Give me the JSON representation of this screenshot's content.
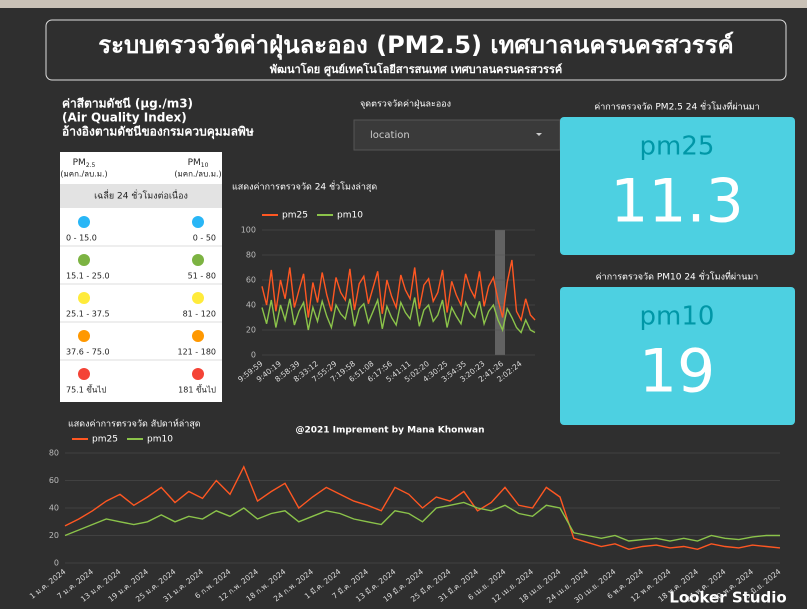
{
  "header": {
    "title": "ระบบตรวจวัดค่าฝุ่นละออง (PM2.5) เทศบาลนครนครสวรรค์",
    "subtitle": "พัฒนาโดย ศูนย์เทคโนโลยีสารสนเทศ เทศบาลนครนครสวรรค์"
  },
  "aqi_legend": {
    "heading": [
      "ค่าสีตามดัชนี  (μg./m3)",
      "(Air Quality Index)",
      "อ้างอิงตามดัชนีของกรมควบคุมมลพิษ"
    ],
    "columns": [
      {
        "name": "PM",
        "sub": "2.5",
        "unit": "(มคก./ลบ.ม.)"
      },
      {
        "name": "PM",
        "sub": "10",
        "unit": "(มคก./ลบ.ม.)"
      }
    ],
    "avg_label": "เฉลี่ย 24 ชั่วโมงต่อเนื่อง",
    "rows": [
      {
        "color": "#29b6f6",
        "pm25": "0 - 15.0",
        "pm10": "0 - 50"
      },
      {
        "color": "#7cb342",
        "pm25": "15.1 - 25.0",
        "pm10": "51 - 80"
      },
      {
        "color": "#ffeb3b",
        "pm25": "25.1 - 37.5",
        "pm10": "81 - 120"
      },
      {
        "color": "#ff9800",
        "pm25": "37.6 - 75.0",
        "pm10": "121 - 180"
      },
      {
        "color": "#f44336",
        "pm25": "75.1 ขึ้นไป",
        "pm10": "181 ขึ้นไป"
      }
    ]
  },
  "location": {
    "label": "จุดตรวจวัดค่าฝุ่นละออง",
    "placeholder": "location"
  },
  "cards": [
    {
      "caption": "ค่าการตรวจวัด PM2.5 24 ชั่วโมงที่ผ่านมา",
      "name": "pm25",
      "value": 11.3
    },
    {
      "caption": "ค่าการตรวจวัด PM10 24 ชั่วโมงที่ผ่านมา",
      "name": "pm10",
      "value": 19
    }
  ],
  "chart_data": [
    {
      "type": "line",
      "title": "แสดงค่าการตรวจวัด 24 ชั่วโมงล่าสุด",
      "categories": [
        "9:59:59",
        null,
        null,
        null,
        "9:40:19",
        null,
        null,
        null,
        "8:58:39",
        null,
        null,
        null,
        "8:33:12",
        null,
        null,
        null,
        "7:55:29",
        null,
        null,
        null,
        "7:19:58",
        null,
        null,
        null,
        "6:51:08",
        null,
        null,
        null,
        "6:17:56",
        null,
        null,
        null,
        "5:41:11",
        null,
        null,
        null,
        "5:02:20",
        null,
        null,
        null,
        "4:30:25",
        null,
        null,
        null,
        "3:54:35",
        null,
        null,
        null,
        "3:20:23",
        null,
        null,
        null,
        "2:41:26",
        null,
        null,
        null,
        "2:02:24",
        null,
        null,
        null
      ],
      "series": [
        {
          "name": "pm25",
          "color": "#ff5722",
          "values": [
            55,
            40,
            68,
            35,
            60,
            45,
            70,
            38,
            52,
            65,
            30,
            58,
            42,
            66,
            48,
            35,
            62,
            50,
            44,
            69,
            36,
            57,
            63,
            41,
            54,
            67,
            33,
            60,
            47,
            38,
            64,
            52,
            45,
            70,
            37,
            56,
            61,
            43,
            50,
            68,
            34,
            59,
            48,
            40,
            65,
            53,
            46,
            67,
            39,
            55,
            62,
            44,
            30,
            58,
            76,
            35,
            28,
            45,
            32,
            28
          ]
        },
        {
          "name": "pm10",
          "color": "#8bc34a",
          "values": [
            38,
            25,
            44,
            22,
            40,
            28,
            45,
            24,
            35,
            42,
            20,
            38,
            27,
            43,
            31,
            22,
            40,
            33,
            29,
            45,
            23,
            37,
            41,
            26,
            35,
            44,
            21,
            39,
            30,
            24,
            42,
            34,
            29,
            46,
            23,
            36,
            40,
            27,
            32,
            44,
            22,
            38,
            31,
            25,
            42,
            34,
            30,
            43,
            25,
            35,
            40,
            28,
            20,
            37,
            30,
            22,
            18,
            28,
            20,
            18
          ]
        }
      ],
      "ylim": [
        0,
        100
      ],
      "yticks": [
        0,
        20,
        40,
        60,
        80,
        100
      ],
      "grid": true
    },
    {
      "type": "line",
      "title": "แสดงค่าการตรวจวัด สัปดาห์ล่าสุด",
      "categories": [
        "1 ม.ค. 2024",
        null,
        "7 ม.ค. 2024",
        null,
        "13 ม.ค. 2024",
        null,
        "19 ม.ค. 2024",
        null,
        "25 ม.ค. 2024",
        null,
        "31 ม.ค. 2024",
        null,
        "6 ก.พ. 2024",
        null,
        "12 ก.พ. 2024",
        null,
        "18 ก.พ. 2024",
        null,
        "24 ก.พ. 2024",
        null,
        "1 มี.ค. 2024",
        null,
        "7 มี.ค. 2024",
        null,
        "13 มี.ค. 2024",
        null,
        "19 มี.ค. 2024",
        null,
        "25 มี.ค. 2024",
        null,
        "31 มี.ค. 2024",
        null,
        "6 เม.ย. 2024",
        null,
        "12 เม.ย. 2024",
        null,
        "18 เม.ย. 2024",
        null,
        "24 เม.ย. 2024",
        null,
        "30 เม.ย. 2024",
        null,
        "6 พ.ค. 2024",
        null,
        "12 พ.ค. 2024",
        null,
        "18 พ.ค. 2024",
        null,
        "24 พ.ค. 2024",
        null,
        "30 พ.ค. 2024",
        null,
        "5 มิ.ย. 2024"
      ],
      "series": [
        {
          "name": "pm25",
          "color": "#ff5722",
          "values": [
            27,
            32,
            38,
            45,
            50,
            42,
            48,
            55,
            44,
            52,
            47,
            60,
            50,
            70,
            45,
            52,
            58,
            40,
            48,
            55,
            50,
            45,
            42,
            38,
            55,
            50,
            40,
            48,
            45,
            52,
            38,
            44,
            55,
            42,
            40,
            55,
            48,
            18,
            15,
            12,
            14,
            10,
            12,
            13,
            11,
            12,
            10,
            14,
            12,
            11,
            13,
            12,
            11
          ]
        },
        {
          "name": "pm10",
          "color": "#8bc34a",
          "values": [
            20,
            24,
            28,
            32,
            30,
            28,
            30,
            35,
            30,
            34,
            32,
            38,
            34,
            40,
            32,
            36,
            38,
            30,
            34,
            38,
            36,
            32,
            30,
            28,
            38,
            36,
            30,
            40,
            42,
            44,
            40,
            38,
            42,
            36,
            34,
            42,
            40,
            22,
            20,
            18,
            20,
            16,
            17,
            18,
            16,
            18,
            16,
            20,
            18,
            17,
            19,
            20,
            20
          ]
        }
      ],
      "ylim": [
        0,
        80
      ],
      "yticks": [
        0,
        20,
        40,
        60,
        80
      ],
      "grid": true
    }
  ],
  "footer": {
    "credit": "@2021 Imprement by Mana Khonwan",
    "brand": "Looker Studio"
  }
}
